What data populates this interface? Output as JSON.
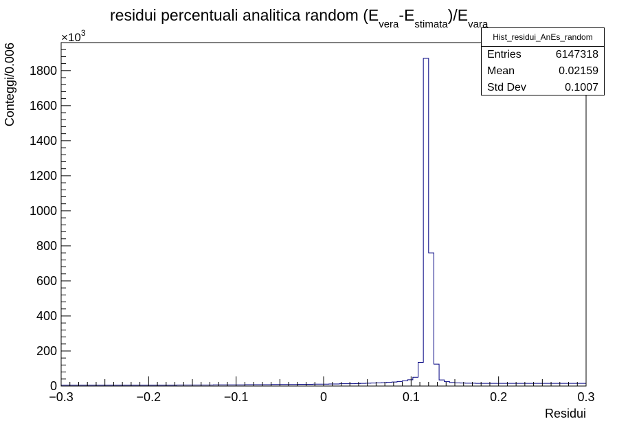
{
  "chart_data": {
    "type": "bar",
    "title": {
      "main": "residui percentuali analitica random (E",
      "sub1": "vera",
      "mid": "-E",
      "sub2": "stimata",
      "mid2": ")/E",
      "sub3": "vara"
    },
    "xlabel": "Residui",
    "ylabel": "Conteggi/0.006",
    "y_multiplier": "×10",
    "y_multiplier_exp": "3",
    "xlim": [
      -0.3,
      0.3
    ],
    "ylim": [
      0,
      1960
    ],
    "x_ticks": [
      -0.3,
      -0.2,
      -0.1,
      0,
      0.1,
      0.2,
      0.3
    ],
    "x_tick_labels": [
      "−0.3",
      "−0.2",
      "−0.1",
      "0",
      "0.1",
      "0.2",
      "0.3"
    ],
    "y_ticks": [
      0,
      200,
      400,
      600,
      800,
      1000,
      1200,
      1400,
      1600,
      1800
    ],
    "y_tick_labels": [
      "0",
      "200",
      "400",
      "600",
      "800",
      "1000",
      "1200",
      "1400",
      "1600",
      "1800"
    ],
    "bin_width": 0.006,
    "bin_start": -0.3,
    "values": [
      5,
      5,
      5,
      5,
      5,
      5,
      5,
      5,
      5,
      5,
      5,
      5,
      5,
      5,
      5,
      5,
      5,
      5,
      5,
      5,
      5,
      5,
      6,
      6,
      6,
      6,
      6,
      6,
      6,
      7,
      7,
      7,
      7,
      7,
      7,
      8,
      8,
      8,
      8,
      8,
      9,
      9,
      9,
      9,
      9,
      10,
      10,
      10,
      11,
      11,
      11,
      12,
      12,
      13,
      13,
      13,
      14,
      15,
      16,
      17,
      18,
      19,
      21,
      23,
      26,
      30,
      36,
      50,
      135,
      1870,
      760,
      125,
      35,
      25,
      20,
      18,
      17,
      16,
      16,
      15,
      15,
      15,
      15,
      15,
      15,
      15,
      15,
      15,
      15,
      15,
      15,
      15,
      15,
      15,
      15,
      15,
      15,
      15,
      15,
      15
    ],
    "line_color": "#000080",
    "legend": "top-right"
  },
  "stats_box": {
    "title": "Hist_residui_AnEs_random",
    "rows": [
      {
        "label": "Entries",
        "value": "6147318"
      },
      {
        "label": "Mean",
        "value": "0.02159"
      },
      {
        "label": "Std Dev",
        "value": "0.1007"
      }
    ]
  }
}
